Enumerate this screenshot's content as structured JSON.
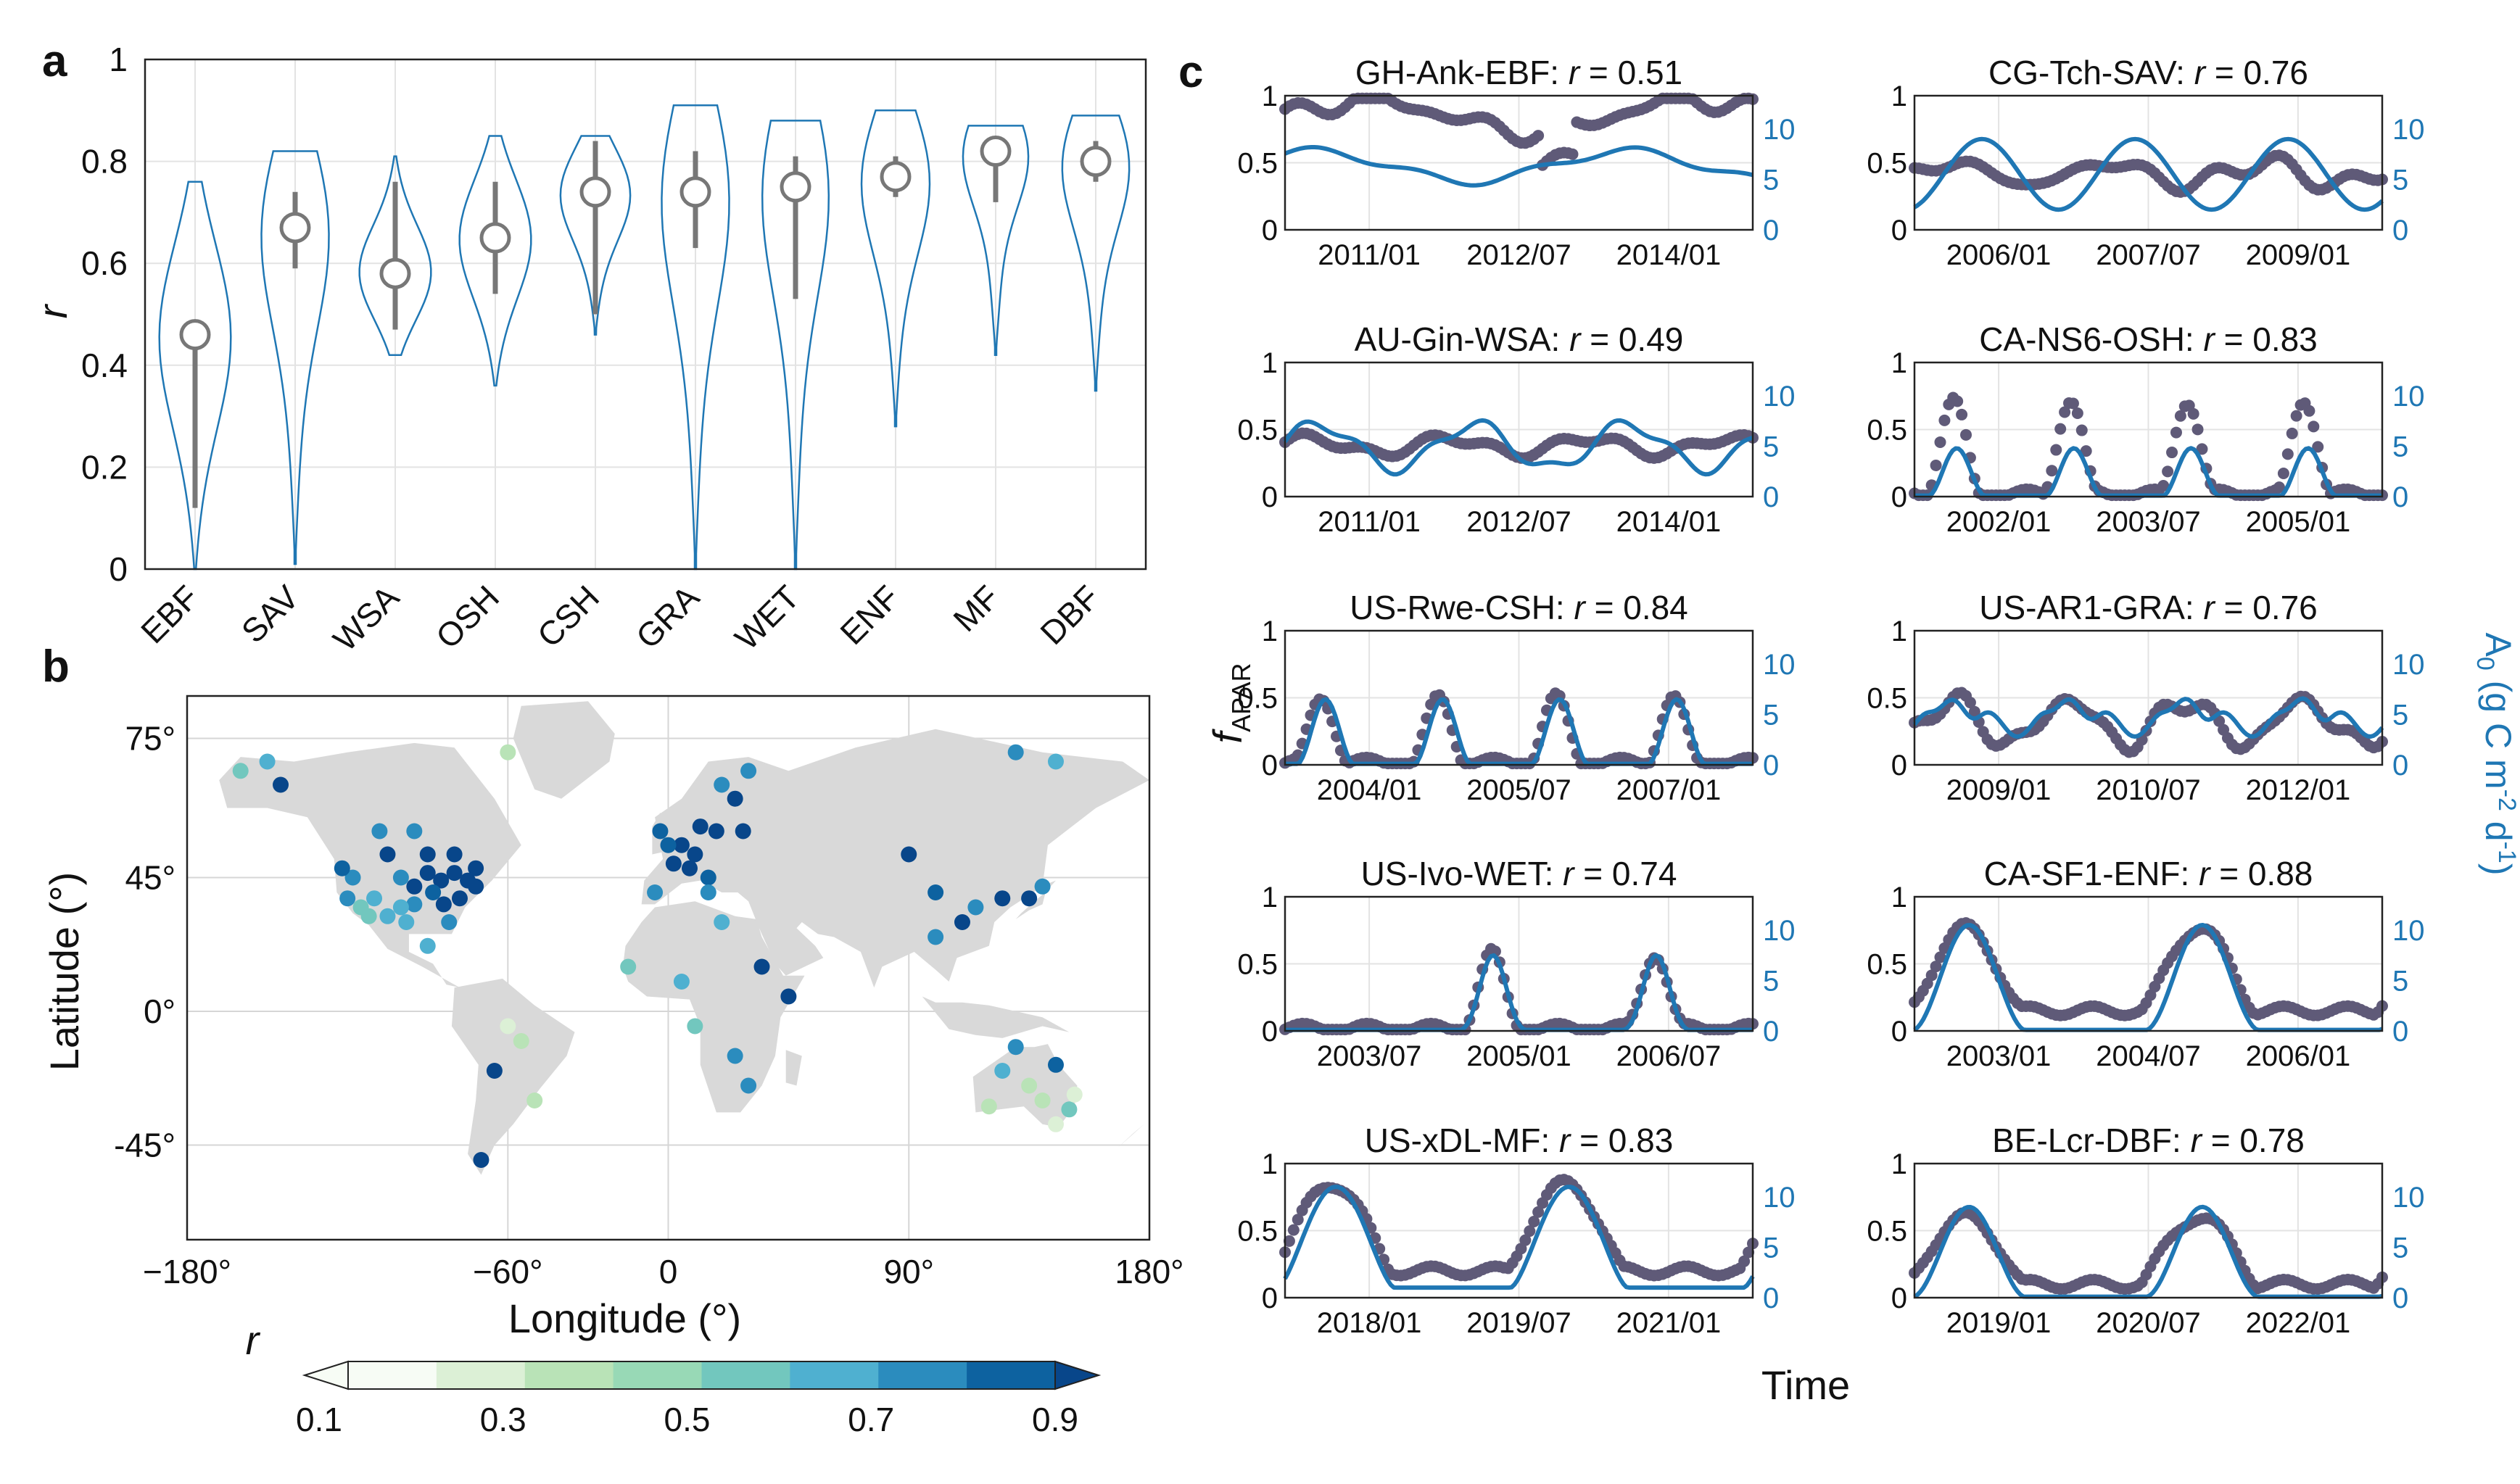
{
  "panel_labels": {
    "a": "a",
    "b": "b",
    "c": "c"
  },
  "colors": {
    "violin": "#1f77b4",
    "fapar_points": "#5f5a78",
    "a0_line": "#1f77b4",
    "land": "#d9d9d9",
    "median_marker": "#777777"
  },
  "chart_data": [
    {
      "id": "a",
      "type": "violin",
      "ylabel": "r",
      "ylim": [
        0,
        1
      ],
      "yticks": [
        "0",
        "0.2",
        "0.4",
        "0.6",
        "0.8",
        "1"
      ],
      "categories": [
        "EBF",
        "SAV",
        "WSA",
        "OSH",
        "CSH",
        "GRA",
        "WET",
        "ENF",
        "MF",
        "DBF"
      ],
      "median": [
        0.46,
        0.67,
        0.58,
        0.65,
        0.74,
        0.74,
        0.75,
        0.77,
        0.82,
        0.8
      ],
      "iqr": [
        [
          0.12,
          0.48
        ],
        [
          0.59,
          0.74
        ],
        [
          0.47,
          0.76
        ],
        [
          0.54,
          0.76
        ],
        [
          0.5,
          0.84
        ],
        [
          0.63,
          0.82
        ],
        [
          0.53,
          0.81
        ],
        [
          0.73,
          0.81
        ],
        [
          0.72,
          0.85
        ],
        [
          0.76,
          0.84
        ]
      ],
      "range": [
        [
          0.0,
          0.76
        ],
        [
          0.01,
          0.82
        ],
        [
          0.42,
          0.81
        ],
        [
          0.36,
          0.85
        ],
        [
          0.46,
          0.85
        ],
        [
          0.0,
          0.91
        ],
        [
          0.0,
          0.88
        ],
        [
          0.28,
          0.9
        ],
        [
          0.42,
          0.87
        ],
        [
          0.35,
          0.89
        ]
      ],
      "grid": true
    },
    {
      "id": "b",
      "type": "map",
      "xlabel": "Longitude (°)",
      "ylabel": "Latitude (°)",
      "xticks": [
        "−180°",
        "−60°",
        "0",
        "90°",
        "180°"
      ],
      "xtick_values": [
        -180,
        -60,
        0,
        90,
        180
      ],
      "yticks": [
        "75°",
        "45°",
        "0°",
        "-45°"
      ],
      "ytick_values": [
        75,
        45,
        0,
        -45
      ],
      "colorbar": {
        "label": "r",
        "ticks": [
          "0.1",
          "0.3",
          "0.5",
          "0.7",
          "0.9"
        ],
        "min": 0.1,
        "max": 0.9,
        "colors": [
          "#f7fcf5",
          "#dcf0d6",
          "#b9e3b7",
          "#98d9b6",
          "#72c7be",
          "#4fb0d0",
          "#2b8cbe",
          "#0d62a0",
          "#08468a"
        ]
      },
      "sites": [
        {
          "lon": -150,
          "lat": 70,
          "r": 0.5
        },
        {
          "lon": -145,
          "lat": 65,
          "r": 0.8
        },
        {
          "lon": -160,
          "lat": 68,
          "r": 0.45
        },
        {
          "lon": -105,
          "lat": 50,
          "r": 0.85
        },
        {
          "lon": -100,
          "lat": 45,
          "r": 0.7
        },
        {
          "lon": -95,
          "lat": 42,
          "r": 0.8
        },
        {
          "lon": -90,
          "lat": 46,
          "r": 0.88
        },
        {
          "lon": -85,
          "lat": 44,
          "r": 0.9
        },
        {
          "lon": -80,
          "lat": 46,
          "r": 0.85
        },
        {
          "lon": -75,
          "lat": 44,
          "r": 0.82
        },
        {
          "lon": -72,
          "lat": 42,
          "r": 0.9
        },
        {
          "lon": -88,
          "lat": 40,
          "r": 0.75
        },
        {
          "lon": -95,
          "lat": 36,
          "r": 0.6
        },
        {
          "lon": -100,
          "lat": 35,
          "r": 0.55
        },
        {
          "lon": -110,
          "lat": 38,
          "r": 0.5
        },
        {
          "lon": -115,
          "lat": 35,
          "r": 0.45
        },
        {
          "lon": -120,
          "lat": 38,
          "r": 0.6
        },
        {
          "lon": -118,
          "lat": 45,
          "r": 0.7
        },
        {
          "lon": -122,
          "lat": 47,
          "r": 0.78
        },
        {
          "lon": -105,
          "lat": 32,
          "r": 0.5
        },
        {
          "lon": -98,
          "lat": 30,
          "r": 0.55
        },
        {
          "lon": -82,
          "lat": 30,
          "r": 0.7
        },
        {
          "lon": -84,
          "lat": 36,
          "r": 0.8
        },
        {
          "lon": -78,
          "lat": 38,
          "r": 0.85
        },
        {
          "lon": -112,
          "lat": 32,
          "r": 0.4
        },
        {
          "lon": -108,
          "lat": 55,
          "r": 0.7
        },
        {
          "lon": -95,
          "lat": 55,
          "r": 0.65
        },
        {
          "lon": -80,
          "lat": 50,
          "r": 0.85
        },
        {
          "lon": -72,
          "lat": 47,
          "r": 0.88
        },
        {
          "lon": -90,
          "lat": 50,
          "r": 0.9
        },
        {
          "lon": -60,
          "lat": 72,
          "r": 0.3
        },
        {
          "lon": -90,
          "lat": 22,
          "r": 0.55
        },
        {
          "lon": -60,
          "lat": -5,
          "r": 0.1
        },
        {
          "lon": -55,
          "lat": -10,
          "r": 0.2
        },
        {
          "lon": -65,
          "lat": -20,
          "r": 0.8
        },
        {
          "lon": -50,
          "lat": -30,
          "r": 0.3
        },
        {
          "lon": -70,
          "lat": -50,
          "r": 0.82
        },
        {
          "lon": 5,
          "lat": 52,
          "r": 0.85
        },
        {
          "lon": 10,
          "lat": 50,
          "r": 0.9
        },
        {
          "lon": 8,
          "lat": 47,
          "r": 0.88
        },
        {
          "lon": 12,
          "lat": 56,
          "r": 0.82
        },
        {
          "lon": 25,
          "lat": 62,
          "r": 0.85
        },
        {
          "lon": 20,
          "lat": 65,
          "r": 0.6
        },
        {
          "lon": 15,
          "lat": 45,
          "r": 0.75
        },
        {
          "lon": 2,
          "lat": 48,
          "r": 0.8
        },
        {
          "lon": -5,
          "lat": 40,
          "r": 0.65
        },
        {
          "lon": 0,
          "lat": 52,
          "r": 0.75
        },
        {
          "lon": 18,
          "lat": 55,
          "r": 0.8
        },
        {
          "lon": 28,
          "lat": 55,
          "r": 0.85
        },
        {
          "lon": 15,
          "lat": 40,
          "r": 0.7
        },
        {
          "lon": -3,
          "lat": 55,
          "r": 0.78
        },
        {
          "lon": 30,
          "lat": 68,
          "r": 0.7
        },
        {
          "lon": 20,
          "lat": 30,
          "r": 0.5
        },
        {
          "lon": -15,
          "lat": 15,
          "r": 0.4
        },
        {
          "lon": 5,
          "lat": 10,
          "r": 0.55
        },
        {
          "lon": 25,
          "lat": -15,
          "r": 0.6
        },
        {
          "lon": 30,
          "lat": -25,
          "r": 0.7
        },
        {
          "lon": 10,
          "lat": -5,
          "r": 0.45
        },
        {
          "lon": 45,
          "lat": 5,
          "r": 0.85
        },
        {
          "lon": 35,
          "lat": 15,
          "r": 0.9
        },
        {
          "lon": 90,
          "lat": 50,
          "r": 0.85
        },
        {
          "lon": 100,
          "lat": 40,
          "r": 0.75
        },
        {
          "lon": 115,
          "lat": 35,
          "r": 0.7
        },
        {
          "lon": 125,
          "lat": 38,
          "r": 0.8
        },
        {
          "lon": 135,
          "lat": 38,
          "r": 0.85
        },
        {
          "lon": 140,
          "lat": 42,
          "r": 0.6
        },
        {
          "lon": 110,
          "lat": 30,
          "r": 0.9
        },
        {
          "lon": 100,
          "lat": 25,
          "r": 0.7
        },
        {
          "lon": 130,
          "lat": 72,
          "r": 0.65
        },
        {
          "lon": 145,
          "lat": 70,
          "r": 0.55
        },
        {
          "lon": 130,
          "lat": -12,
          "r": 0.6
        },
        {
          "lon": 145,
          "lat": -18,
          "r": 0.75
        },
        {
          "lon": 135,
          "lat": -25,
          "r": 0.3
        },
        {
          "lon": 120,
          "lat": -32,
          "r": 0.2
        },
        {
          "lon": 150,
          "lat": -33,
          "r": 0.45
        },
        {
          "lon": 145,
          "lat": -38,
          "r": 0.15
        },
        {
          "lon": 140,
          "lat": -30,
          "r": 0.25
        },
        {
          "lon": 152,
          "lat": -28,
          "r": 0.1
        },
        {
          "lon": 125,
          "lat": -20,
          "r": 0.5
        }
      ]
    },
    {
      "id": "c",
      "type": "line-scatter-panels",
      "xlabel": "Time",
      "ylabel_left": "fAPAR",
      "ylabel_left_main": "f",
      "ylabel_left_sub": "APAR",
      "ylabel_right": "A0 (g C m-2 d-1)",
      "ylabel_right_parts": {
        "a": "A",
        "a_sub": "0",
        "open": " (g C m",
        "exp1": "-2",
        "mid": " d",
        "exp2": "-1",
        "close": ")"
      },
      "left_ylim": [
        0,
        1
      ],
      "left_yticks": [
        "0",
        "0.5",
        "1"
      ],
      "right_ylim": [
        0,
        13.3
      ],
      "right_yticks": [
        "0",
        "5",
        "10"
      ],
      "series_names": [
        "fAPAR",
        "A0"
      ],
      "panels": [
        {
          "site": "GH-Ank-EBF",
          "r": "0.51",
          "xticks": [
            "2011/01",
            "2012/07",
            "2014/01"
          ],
          "pattern": "ebf"
        },
        {
          "site": "CG-Tch-SAV",
          "r": "0.76",
          "xticks": [
            "2006/01",
            "2007/07",
            "2009/01"
          ],
          "pattern": "sav"
        },
        {
          "site": "AU-Gin-WSA",
          "r": "0.49",
          "xticks": [
            "2011/01",
            "2012/07",
            "2014/01"
          ],
          "pattern": "wsa"
        },
        {
          "site": "CA-NS6-OSH",
          "r": "0.83",
          "xticks": [
            "2002/01",
            "2003/07",
            "2005/01"
          ],
          "pattern": "osh"
        },
        {
          "site": "US-Rwe-CSH",
          "r": "0.84",
          "xticks": [
            "2004/01",
            "2005/07",
            "2007/01"
          ],
          "pattern": "csh"
        },
        {
          "site": "US-AR1-GRA",
          "r": "0.76",
          "xticks": [
            "2009/01",
            "2010/07",
            "2012/01"
          ],
          "pattern": "gra"
        },
        {
          "site": "US-Ivo-WET",
          "r": "0.74",
          "xticks": [
            "2003/07",
            "2005/01",
            "2006/07"
          ],
          "pattern": "wet"
        },
        {
          "site": "CA-SF1-ENF",
          "r": "0.88",
          "xticks": [
            "2003/01",
            "2004/07",
            "2006/01"
          ],
          "pattern": "enf"
        },
        {
          "site": "US-xDL-MF",
          "r": "0.83",
          "xticks": [
            "2018/01",
            "2019/07",
            "2021/01"
          ],
          "pattern": "mf"
        },
        {
          "site": "BE-Lcr-DBF",
          "r": "0.78",
          "xticks": [
            "2019/01",
            "2020/07",
            "2022/01"
          ],
          "pattern": "dbf"
        }
      ]
    }
  ]
}
